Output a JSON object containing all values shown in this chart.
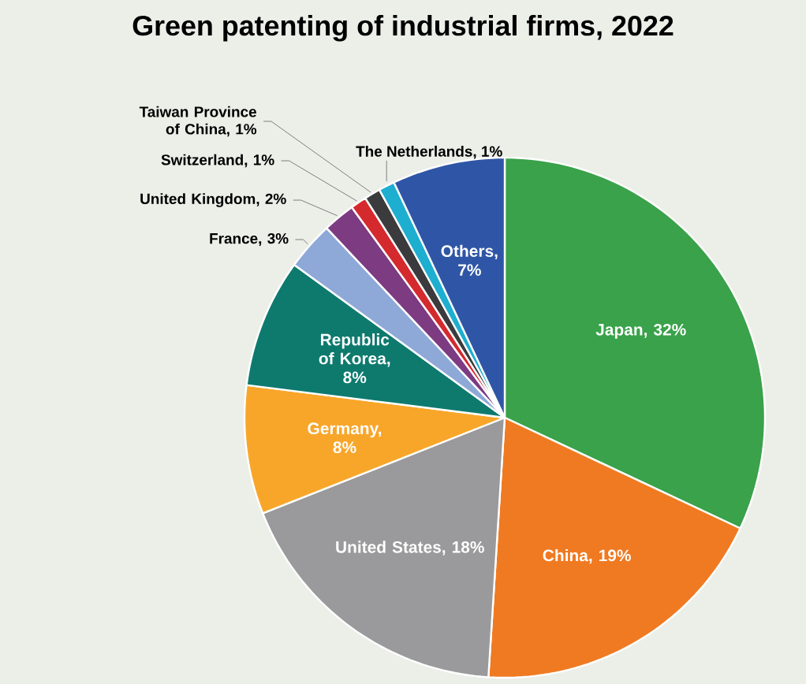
{
  "chart_data": {
    "type": "pie",
    "title": "Green patenting of industrial firms, 2022",
    "categories": [
      "Japan, 32%",
      "China, 19%",
      "United States, 18%",
      "Germany, 8%",
      "Republic of Korea, 8%",
      "France, 3%",
      "United Kingdom, 2%",
      "Switzerland, 1%",
      "Taiwan Province of China, 1%",
      "The Netherlands, 1%",
      "Others, 7%"
    ],
    "values": [
      32,
      19,
      18,
      8,
      8,
      3,
      2,
      1,
      1,
      1,
      7
    ],
    "colors": [
      "#3aa24a",
      "#f07a22",
      "#9a9a9c",
      "#f8a62a",
      "#0e7a6e",
      "#8ea9d8",
      "#7d3b82",
      "#d42a2e",
      "#3b3b3d",
      "#1eaed0",
      "#2f56a6"
    ]
  }
}
